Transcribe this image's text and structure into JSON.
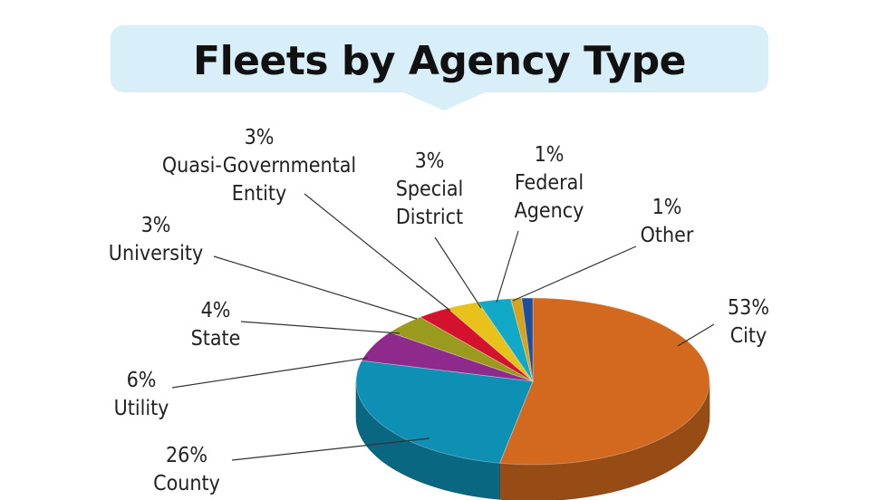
{
  "chart_data": {
    "type": "pie",
    "title": "Fleets by Agency Type",
    "slices": [
      {
        "label": "City",
        "value": 53,
        "value_label": "53%",
        "color": "#d2691e"
      },
      {
        "label": "County",
        "value": 26,
        "value_label": "26%",
        "color": "#0e8fb4"
      },
      {
        "label": "Utility",
        "value": 6,
        "value_label": "6%",
        "color": "#8e2a8c"
      },
      {
        "label": "State",
        "value": 4,
        "value_label": "4%",
        "color": "#9a9a1e"
      },
      {
        "label": "University",
        "value": 3,
        "value_label": "3%",
        "color": "#d4122e"
      },
      {
        "label": "Quasi-Governmental Entity",
        "value": 3,
        "value_label": "3%",
        "color": "#e8c21a"
      },
      {
        "label": "Special District",
        "value": 3,
        "value_label": "3%",
        "color": "#12a9c9"
      },
      {
        "label": "Federal Agency",
        "value": 1,
        "value_label": "1%",
        "color": "#d9a21b"
      },
      {
        "label": "Other",
        "value": 1,
        "value_label": "1%",
        "color": "#1c4f9c"
      }
    ],
    "labels": {
      "city": {
        "pct": "53%",
        "name": "City"
      },
      "county": {
        "pct": "26%",
        "name": "County"
      },
      "utility": {
        "pct": "6%",
        "name": "Utility"
      },
      "state": {
        "pct": "4%",
        "name": "State"
      },
      "university": {
        "pct": "3%",
        "name": "University"
      },
      "quasi": {
        "pct": "3%",
        "name_line1": "Quasi-Governmental",
        "name_line2": "Entity"
      },
      "special": {
        "pct": "3%",
        "name_line1": "Special",
        "name_line2": "District"
      },
      "federal": {
        "pct": "1%",
        "name_line1": "Federal",
        "name_line2": "Agency"
      },
      "other": {
        "pct": "1%",
        "name": "Other"
      }
    }
  }
}
